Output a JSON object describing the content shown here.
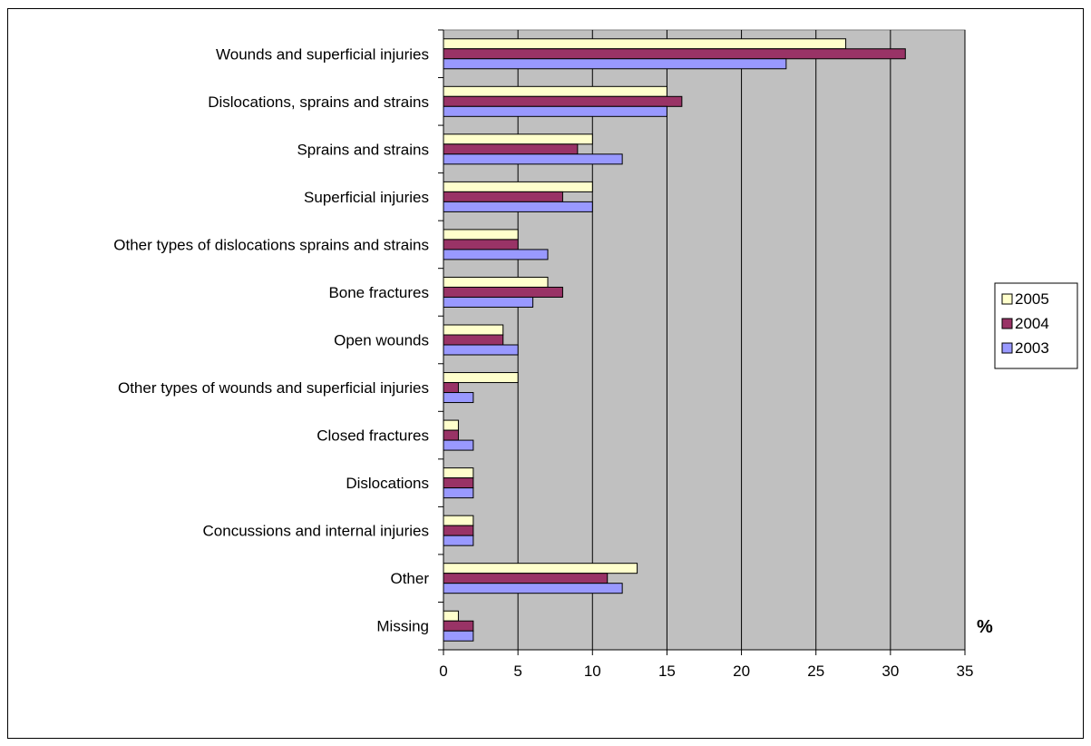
{
  "chart_data": {
    "type": "bar",
    "orientation": "horizontal",
    "categories": [
      "Wounds and superficial injuries",
      "Dislocations, sprains and strains",
      "Sprains and strains",
      "Superficial injuries",
      "Other types of dislocations sprains and strains",
      "Bone fractures",
      "Open wounds",
      "Other types of wounds and superficial injuries",
      "Closed fractures",
      "Dislocations",
      "Concussions and internal injuries",
      "Other",
      "Missing"
    ],
    "series": [
      {
        "name": "2005",
        "color": "#FFFFCC",
        "values": [
          27,
          15,
          10,
          10,
          5,
          7,
          4,
          5,
          1,
          2,
          2,
          13,
          1
        ]
      },
      {
        "name": "2004",
        "color": "#993366",
        "values": [
          31,
          16,
          9,
          8,
          5,
          8,
          4,
          1,
          1,
          2,
          2,
          11,
          2
        ]
      },
      {
        "name": "2003",
        "color": "#9999FF",
        "values": [
          23,
          15,
          12,
          10,
          7,
          6,
          5,
          2,
          2,
          2,
          2,
          12,
          2
        ]
      }
    ],
    "xlim": [
      0,
      35
    ],
    "xticks": [
      "0",
      "5",
      "10",
      "15",
      "20",
      "25",
      "30",
      "35"
    ],
    "unit_label": "%",
    "grid": true,
    "plot_background": "#C0C0C0",
    "legend_position": "right"
  }
}
